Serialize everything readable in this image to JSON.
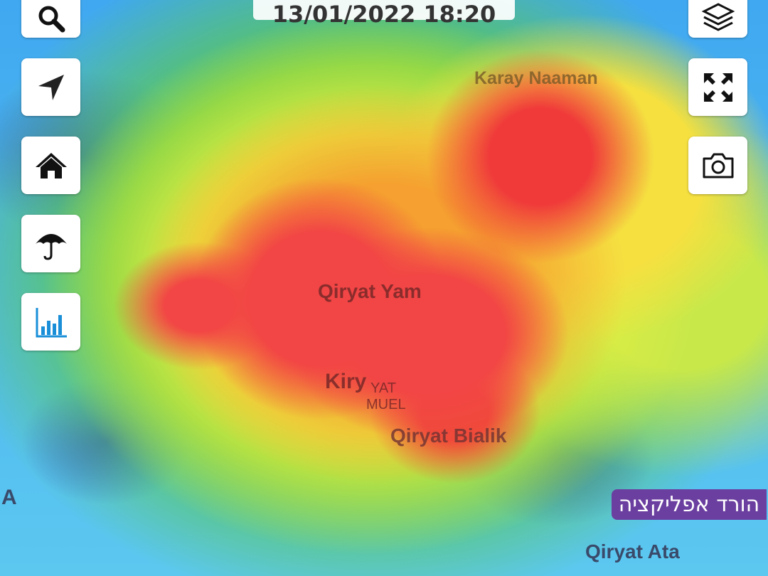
{
  "datetime": "13/01/2022 18:20",
  "map_labels": {
    "karay_naaman": "Karay Naaman",
    "qiryat_yam": "Qiryat Yam",
    "kiry": "Kiry",
    "yat_shmuel_1": "YAT",
    "yat_shmuel_2": "MUEL",
    "qiryat_bialik": "Qiryat Bialik",
    "qiryat_ata": "Qiryat Ata",
    "edge_a": "A"
  },
  "download_app_label": "הורד אפליקציה",
  "left_buttons": [
    "search-icon",
    "location-arrow-icon",
    "home-icon",
    "umbrella-icon",
    "bar-chart-icon"
  ],
  "right_buttons": [
    "layers-icon",
    "fullscreen-icon",
    "camera-icon"
  ],
  "colors": {
    "download_bg": "#6b3fa0",
    "chart_icon": "#1a8fd8",
    "heat_high": "#f24545",
    "heat_low": "#40a8f0"
  }
}
